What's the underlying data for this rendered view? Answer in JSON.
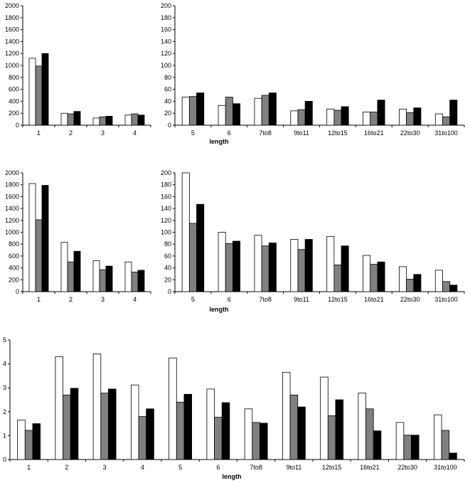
{
  "colors": {
    "series": [
      "#ffffff",
      "#808080",
      "#000000"
    ],
    "outline": "#000000",
    "background": "#ffffff"
  },
  "chart_data": [
    {
      "type": "bar",
      "categories": [
        "1",
        "2",
        "3",
        "4"
      ],
      "series": [
        {
          "values": [
            1120,
            200,
            120,
            170
          ]
        },
        {
          "values": [
            990,
            190,
            140,
            190
          ]
        },
        {
          "values": [
            1200,
            230,
            150,
            170
          ]
        }
      ],
      "ylim": [
        0,
        2000
      ],
      "yticks": [
        0,
        200,
        400,
        600,
        800,
        1000,
        1200,
        1400,
        1600,
        1800,
        2000
      ],
      "xlabel": "",
      "grid": false
    },
    {
      "type": "bar",
      "categories": [
        "5",
        "6",
        "7to8",
        "9to11",
        "12to15",
        "16to21",
        "22to30",
        "31to100"
      ],
      "series": [
        {
          "values": [
            47,
            33,
            45,
            24,
            27,
            22,
            27,
            19
          ]
        },
        {
          "values": [
            48,
            47,
            50,
            26,
            25,
            22,
            21,
            14
          ]
        },
        {
          "values": [
            54,
            36,
            54,
            40,
            31,
            42,
            29,
            42
          ]
        }
      ],
      "ylim": [
        0,
        200
      ],
      "yticks": [
        0,
        20,
        40,
        60,
        80,
        100,
        120,
        140,
        160,
        180,
        200
      ],
      "xlabel": "length",
      "grid": false
    },
    {
      "type": "bar",
      "categories": [
        "1",
        "2",
        "3",
        "4"
      ],
      "series": [
        {
          "values": [
            1820,
            830,
            520,
            500
          ]
        },
        {
          "values": [
            1210,
            500,
            370,
            330
          ]
        },
        {
          "values": [
            1790,
            680,
            430,
            360
          ]
        }
      ],
      "ylim": [
        0,
        2000
      ],
      "yticks": [
        0,
        200,
        400,
        600,
        800,
        1000,
        1200,
        1400,
        1600,
        1800,
        2000
      ],
      "xlabel": "",
      "grid": false
    },
    {
      "type": "bar",
      "categories": [
        "5",
        "6",
        "7to8",
        "9to11",
        "12to15",
        "16to21",
        "22to30",
        "31to100"
      ],
      "series": [
        {
          "values": [
            200,
            100,
            95,
            88,
            93,
            61,
            42,
            36
          ]
        },
        {
          "values": [
            115,
            81,
            77,
            71,
            45,
            46,
            21,
            17
          ]
        },
        {
          "values": [
            147,
            85,
            82,
            88,
            77,
            50,
            29,
            11
          ]
        }
      ],
      "ylim": [
        0,
        200
      ],
      "yticks": [
        0,
        20,
        40,
        60,
        80,
        100,
        120,
        140,
        160,
        180,
        200
      ],
      "xlabel": "length",
      "grid": false
    },
    {
      "type": "bar",
      "categories": [
        "1",
        "2",
        "3",
        "4",
        "5",
        "6",
        "7to8",
        "9to11",
        "12to15",
        "16to21",
        "22to30",
        "31to100"
      ],
      "series": [
        {
          "values": [
            1.65,
            4.3,
            4.42,
            3.12,
            4.25,
            2.95,
            2.12,
            3.65,
            3.45,
            2.78,
            1.55,
            1.87
          ]
        },
        {
          "values": [
            1.22,
            2.7,
            2.78,
            1.8,
            2.4,
            1.77,
            1.55,
            2.7,
            1.83,
            2.12,
            1.02,
            1.22
          ]
        },
        {
          "values": [
            1.5,
            2.98,
            2.95,
            2.12,
            2.73,
            2.38,
            1.52,
            2.2,
            2.5,
            1.2,
            1.02,
            0.27
          ]
        }
      ],
      "ylim": [
        0,
        5
      ],
      "yticks": [
        0,
        1,
        2,
        3,
        4,
        5
      ],
      "xlabel": "length",
      "grid": false
    }
  ]
}
